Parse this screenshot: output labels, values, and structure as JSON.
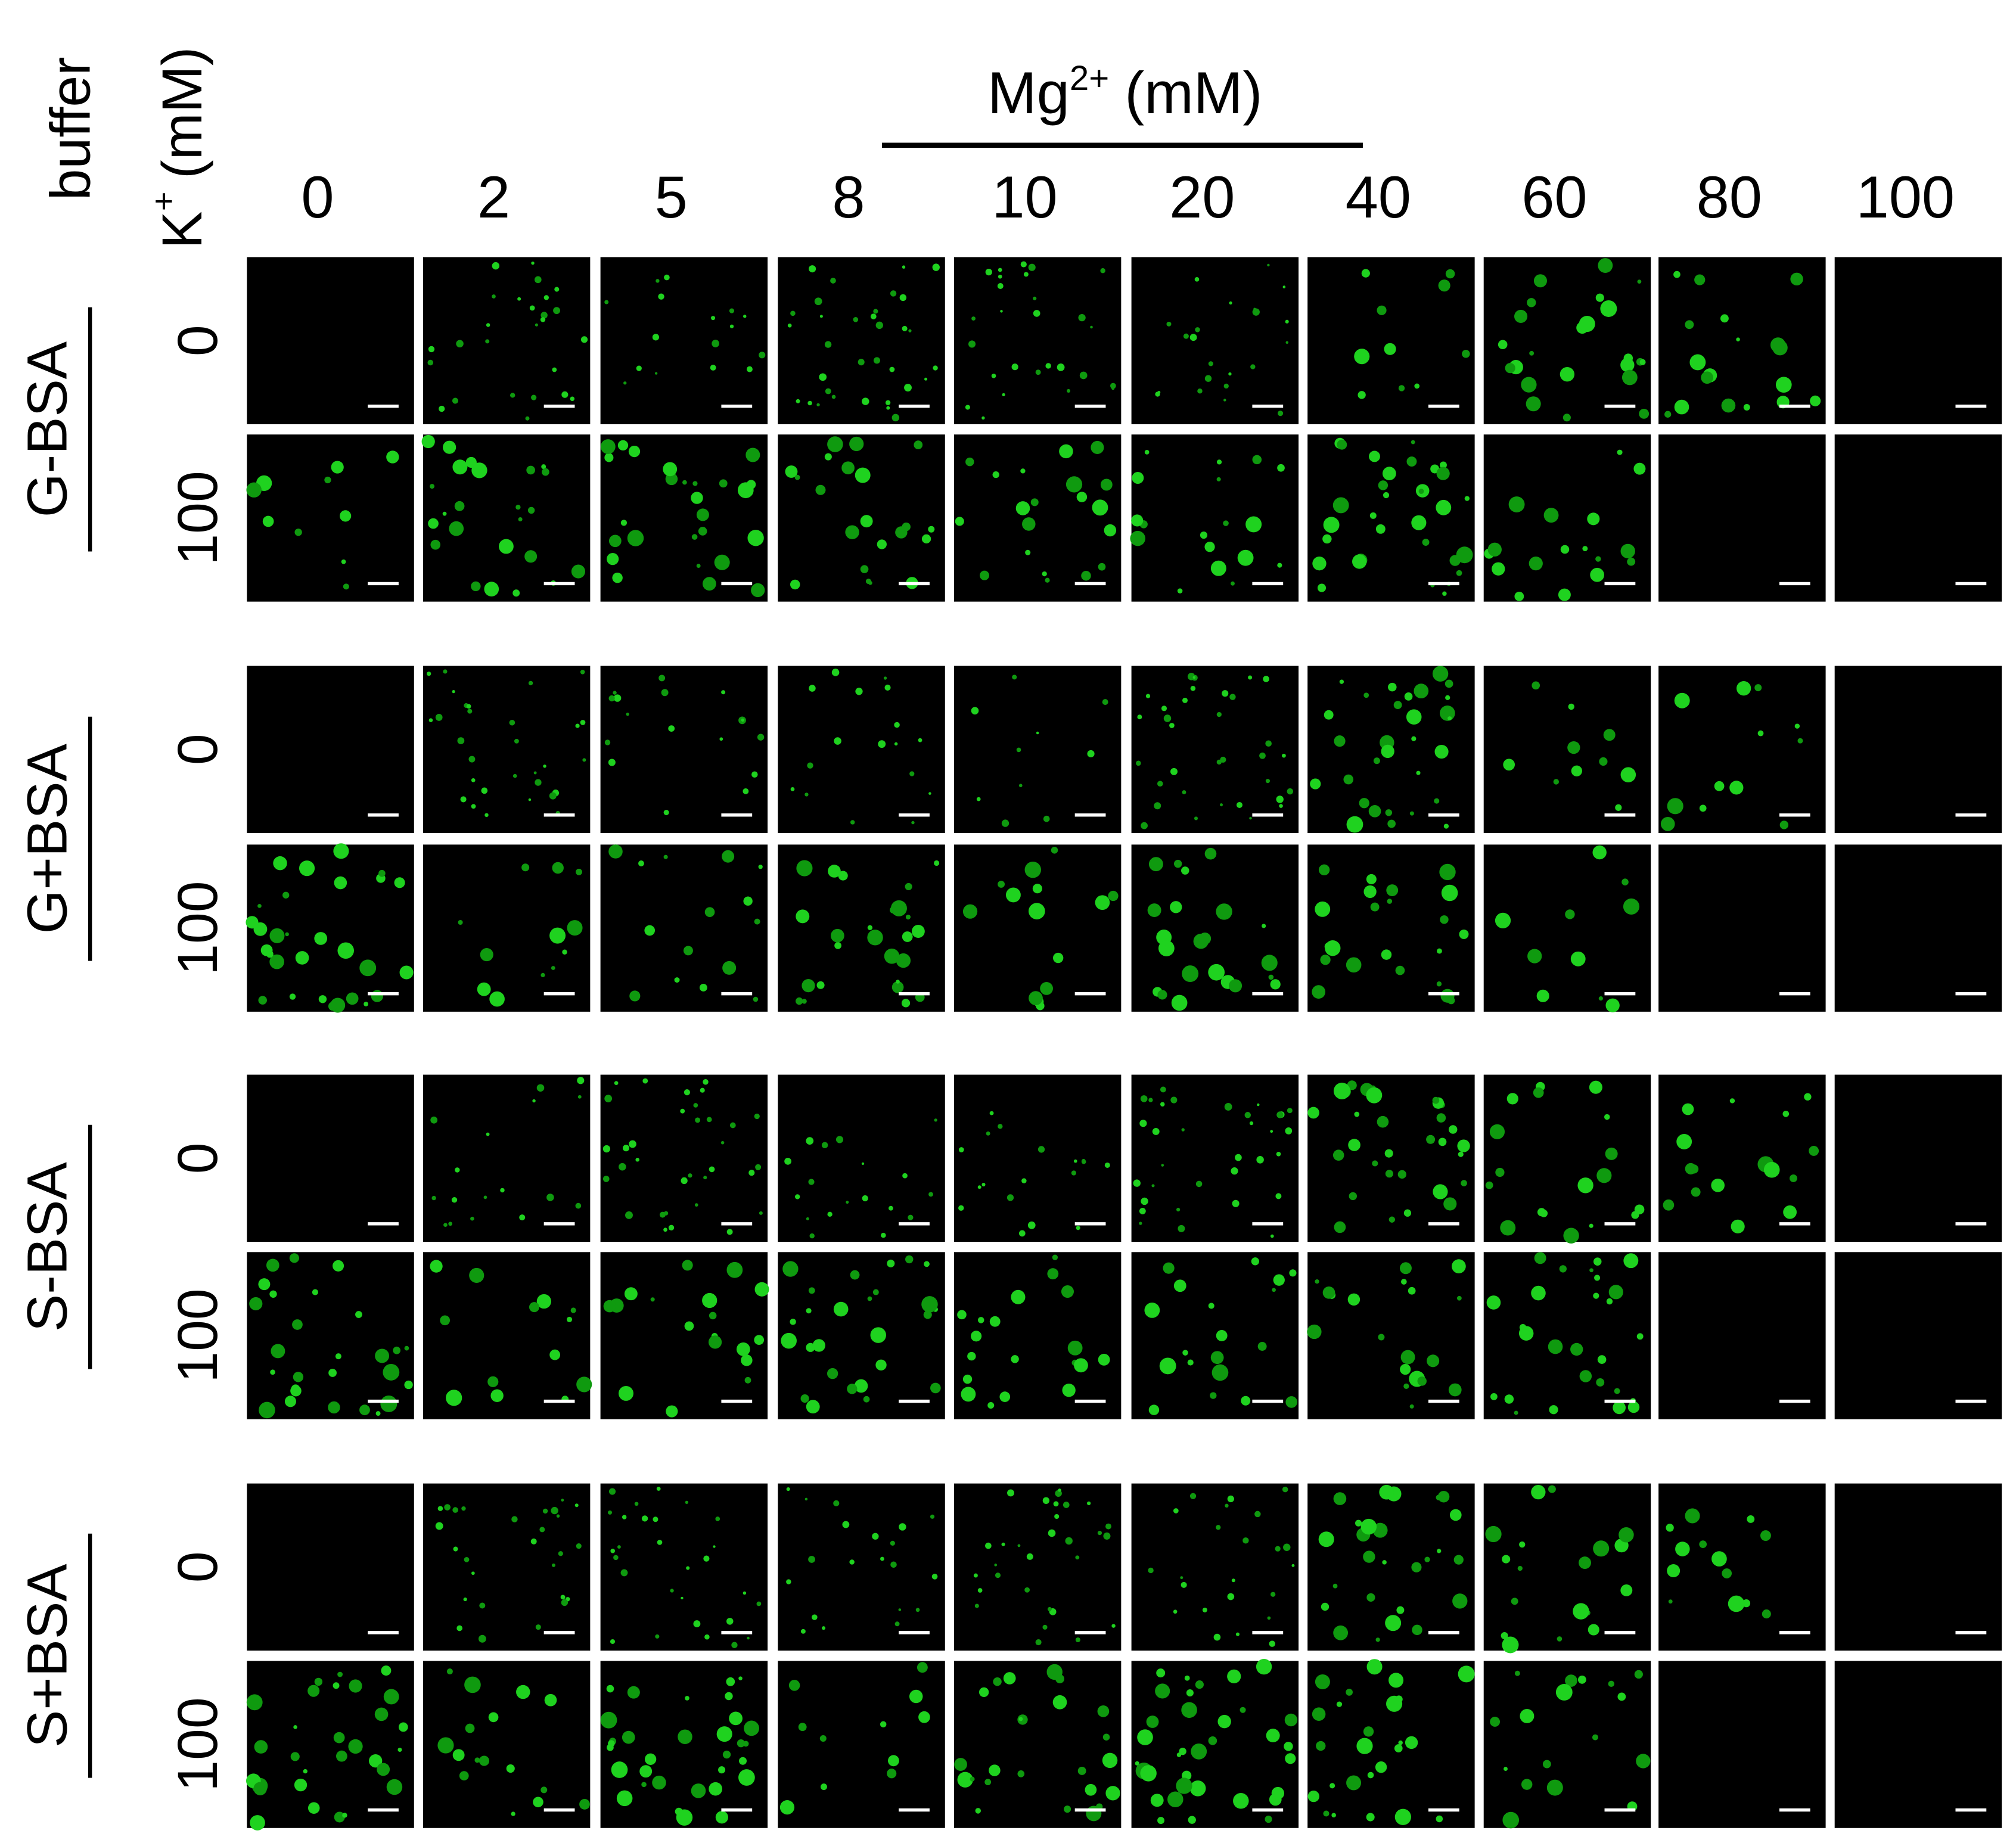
{
  "header": {
    "buffer": "buffer",
    "k_label": {
      "base": "K",
      "sup": "+",
      "unit": "(mM)"
    },
    "mg_label": {
      "base": "Mg",
      "sup": "2+",
      "unit": "(mM)"
    }
  },
  "columns": [
    "0",
    "2",
    "5",
    "8",
    "10",
    "20",
    "40",
    "60",
    "80",
    "100"
  ],
  "groups": [
    {
      "label": "G-BSA",
      "rows": [
        "0",
        "100"
      ]
    },
    {
      "label": "G+BSA",
      "rows": [
        "0",
        "100"
      ]
    },
    {
      "label": "S-BSA",
      "rows": [
        "0",
        "100"
      ]
    },
    {
      "label": "S+BSA",
      "rows": [
        "0",
        "100"
      ]
    }
  ]
}
